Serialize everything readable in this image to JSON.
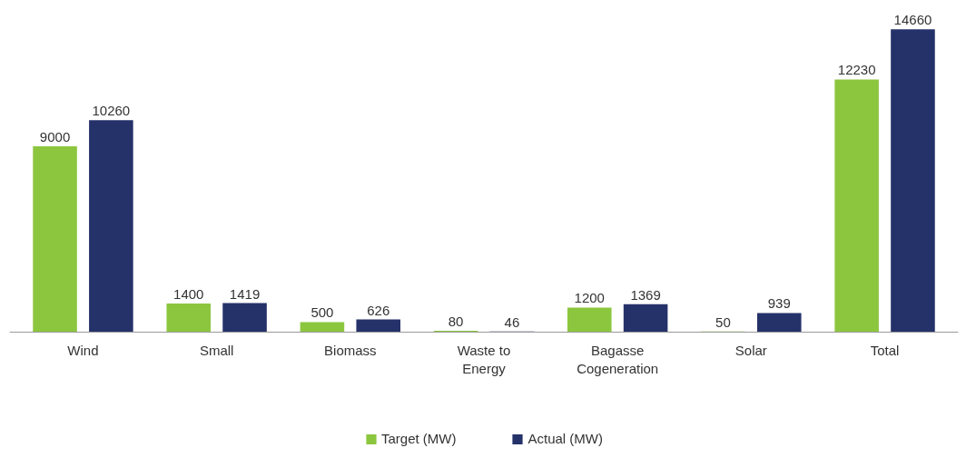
{
  "chart_data": {
    "type": "bar",
    "categories": [
      "Wind",
      "Small",
      "Biomass",
      "Waste to\nEnergy",
      "Bagasse\nCogeneration",
      "Solar",
      "Total"
    ],
    "series": [
      {
        "name": "Target (MW)",
        "color": "#8cc63f",
        "values": [
          9000,
          1400,
          500,
          80,
          1200,
          50,
          12230
        ]
      },
      {
        "name": "Actual (MW)",
        "color": "#253169",
        "values": [
          10260,
          1419,
          626,
          46,
          1369,
          939,
          14660
        ]
      }
    ],
    "data_labels": true,
    "legend": "bottom"
  }
}
